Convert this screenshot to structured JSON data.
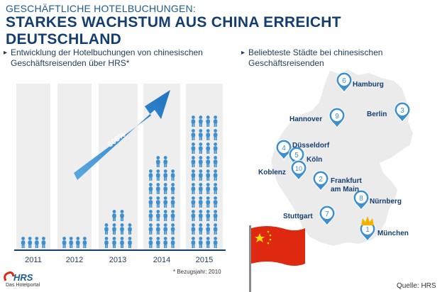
{
  "header": {
    "subtitle": "GESCHÄFTLICHE HOTELBUCHUNGEN:",
    "title": "STARKES WACHSTUM AUS CHINA ERREICHT DEUTSCHLAND"
  },
  "left_panel": {
    "description": "Entwicklung der Hotelbuchungen von chinesischen Geschäftsreisenden über HRS*",
    "years": [
      "2011",
      "2012",
      "2013",
      "2014",
      "2015"
    ],
    "people_counts": [
      4,
      4,
      10,
      26,
      40
    ],
    "arrow_label": "508%",
    "footnote": "* Bezugsjahr: 2010"
  },
  "right_panel": {
    "description": "Beliebteste Städte bei chinesischen Geschäftsreisenden",
    "cities": [
      {
        "rank": "1",
        "name": "München"
      },
      {
        "rank": "2",
        "name": "Frankfurt am Main"
      },
      {
        "rank": "3",
        "name": "Berlin"
      },
      {
        "rank": "4",
        "name": "Düsseldorf"
      },
      {
        "rank": "5",
        "name": "Köln"
      },
      {
        "rank": "6",
        "name": "Hamburg"
      },
      {
        "rank": "7",
        "name": "Stuttgart"
      },
      {
        "rank": "8",
        "name": "Nürnberg"
      },
      {
        "rank": "9",
        "name": "Hannover"
      },
      {
        "rank": "10",
        "name": "Koblenz"
      }
    ]
  },
  "logo": {
    "name": "HRS",
    "tagline": "Das Hotelportal"
  },
  "source": "Quelle: HRS",
  "colors": {
    "title_dark": "#143e70",
    "accent_blue": "#3e8fcd",
    "map_gray": "#ebebeb",
    "flag_red": "#de2910",
    "flag_yellow": "#ffde00"
  }
}
